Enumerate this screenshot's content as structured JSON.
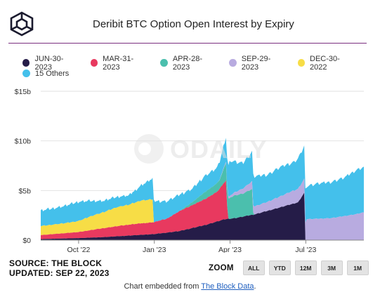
{
  "header": {
    "title": "Deribit BTC Option Open Interest by Expiry"
  },
  "legend": [
    {
      "label": "JUN-30-2023",
      "color": "#251c48"
    },
    {
      "label": "MAR-31-2023",
      "color": "#e8395f"
    },
    {
      "label": "APR-28-2023",
      "color": "#4bbfad"
    },
    {
      "label": "SEP-29-2023",
      "color": "#b8abe0"
    },
    {
      "label": "DEC-30-2022",
      "color": "#f7dd46"
    },
    {
      "label": "15 Others",
      "color": "#44c0eb"
    }
  ],
  "watermark": {
    "text": "ODAILY"
  },
  "chart_data": {
    "type": "area",
    "stacked": true,
    "x_unit": "month (0 = Sep 2022, 1 = Oct 2022, 4 = Jan 2023, 7 = Apr 2023, 10 = Jul 2023)",
    "y_unit": "USD billions",
    "ylim": [
      0,
      15
    ],
    "xlim": [
      -0.5,
      12.3
    ],
    "yticks": [
      {
        "value": 0,
        "label": "$0"
      },
      {
        "value": 5,
        "label": "$5b"
      },
      {
        "value": 10,
        "label": "$10b"
      },
      {
        "value": 15,
        "label": "$15b"
      }
    ],
    "xticks": [
      {
        "value": 1,
        "label": "Oct '22"
      },
      {
        "value": 4,
        "label": "Jan '23"
      },
      {
        "value": 7,
        "label": "Apr '23"
      },
      {
        "value": 10,
        "label": "Jul '23"
      }
    ],
    "grid": "horizontal",
    "series": [
      {
        "name": "JUN-30-2023",
        "color": "#251c48",
        "points": [
          [
            -0.5,
            0.1
          ],
          [
            1,
            0.2
          ],
          [
            2,
            0.3
          ],
          [
            3,
            0.45
          ],
          [
            4,
            0.6
          ],
          [
            5,
            0.9
          ],
          [
            6,
            1.5
          ],
          [
            6.8,
            2.1
          ],
          [
            7.2,
            2.2
          ],
          [
            8,
            2.6
          ],
          [
            9,
            3.3
          ],
          [
            9.7,
            3.8
          ],
          [
            9.95,
            4.8
          ],
          [
            9.97,
            0
          ],
          [
            12.3,
            0
          ]
        ]
      },
      {
        "name": "MAR-31-2023",
        "color": "#e8395f",
        "points": [
          [
            -0.5,
            0.4
          ],
          [
            1,
            0.6
          ],
          [
            2,
            0.9
          ],
          [
            3,
            1.1
          ],
          [
            4,
            1.2
          ],
          [
            4.5,
            1.4
          ],
          [
            5,
            2.0
          ],
          [
            6,
            2.6
          ],
          [
            6.5,
            3.0
          ],
          [
            6.85,
            3.9
          ],
          [
            6.9,
            0
          ],
          [
            12.3,
            0
          ]
        ]
      },
      {
        "name": "APR-28-2023",
        "color": "#4bbfad",
        "points": [
          [
            -0.5,
            0
          ],
          [
            5.0,
            0
          ],
          [
            5.5,
            0.3
          ],
          [
            6,
            0.7
          ],
          [
            6.6,
            0.9
          ],
          [
            6.9,
            2.0
          ],
          [
            7.2,
            2.3
          ],
          [
            7.5,
            2.3
          ],
          [
            7.9,
            2.6
          ],
          [
            7.92,
            0
          ],
          [
            12.3,
            0
          ]
        ]
      },
      {
        "name": "SEP-29-2023",
        "color": "#b8abe0",
        "points": [
          [
            -0.5,
            0
          ],
          [
            6.5,
            0
          ],
          [
            7,
            0.2
          ],
          [
            7.5,
            0.5
          ],
          [
            7.92,
            0.8
          ],
          [
            8.5,
            0.9
          ],
          [
            9,
            1.1
          ],
          [
            9.5,
            1.3
          ],
          [
            9.97,
            1.4
          ],
          [
            10,
            2.1
          ],
          [
            11,
            2.2
          ],
          [
            12,
            2.6
          ],
          [
            12.3,
            2.8
          ]
        ]
      },
      {
        "name": "DEC-30-2022",
        "color": "#f7dd46",
        "points": [
          [
            -0.5,
            0.9
          ],
          [
            0.5,
            1.0
          ],
          [
            1,
            1.1
          ],
          [
            1.5,
            1.4
          ],
          [
            2,
            1.6
          ],
          [
            2.5,
            1.9
          ],
          [
            3,
            2.0
          ],
          [
            3.5,
            2.3
          ],
          [
            3.95,
            2.3
          ],
          [
            3.97,
            0
          ],
          [
            12.3,
            0
          ]
        ]
      },
      {
        "name": "15 Others",
        "color": "#44c0eb",
        "points": [
          [
            -0.5,
            1.5
          ],
          [
            0.5,
            1.7
          ],
          [
            1,
            1.9
          ],
          [
            2,
            1.1
          ],
          [
            3,
            0.9
          ],
          [
            3.97,
            2.1
          ],
          [
            4.5,
            1.7
          ],
          [
            5,
            1.6
          ],
          [
            5.5,
            1.3
          ],
          [
            6,
            1.6
          ],
          [
            6.5,
            1.5
          ],
          [
            6.85,
            2.5
          ],
          [
            7,
            3.5
          ],
          [
            7.2,
            3.0
          ],
          [
            7.5,
            2.5
          ],
          [
            7.92,
            3.0
          ],
          [
            8.5,
            2.7
          ],
          [
            9,
            2.9
          ],
          [
            9.5,
            2.8
          ],
          [
            9.97,
            3.3
          ],
          [
            10,
            3.3
          ],
          [
            10.5,
            3.5
          ],
          [
            11,
            3.6
          ],
          [
            11.5,
            3.8
          ],
          [
            12,
            4.4
          ],
          [
            12.3,
            4.5
          ]
        ]
      }
    ]
  },
  "footer": {
    "source": "SOURCE: THE BLOCK",
    "updated": "UPDATED: SEP 22, 2023",
    "zoom_label": "ZOOM",
    "zoom_buttons": [
      "ALL",
      "YTD",
      "12M",
      "3M",
      "1M"
    ],
    "embed_prefix": "Chart embedded from ",
    "embed_link": "The Block Data",
    "embed_suffix": "."
  }
}
